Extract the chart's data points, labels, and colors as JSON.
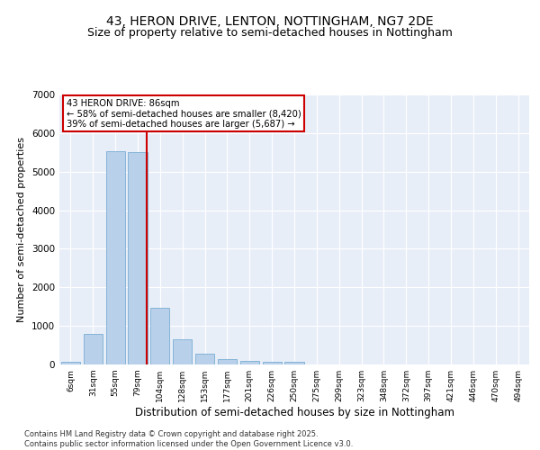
{
  "title1": "43, HERON DRIVE, LENTON, NOTTINGHAM, NG7 2DE",
  "title2": "Size of property relative to semi-detached houses in Nottingham",
  "xlabel": "Distribution of semi-detached houses by size in Nottingham",
  "ylabel": "Number of semi-detached properties",
  "categories": [
    "6sqm",
    "31sqm",
    "55sqm",
    "79sqm",
    "104sqm",
    "128sqm",
    "153sqm",
    "177sqm",
    "201sqm",
    "226sqm",
    "250sqm",
    "275sqm",
    "299sqm",
    "323sqm",
    "348sqm",
    "372sqm",
    "397sqm",
    "421sqm",
    "446sqm",
    "470sqm",
    "494sqm"
  ],
  "values": [
    60,
    800,
    5530,
    5500,
    1480,
    650,
    270,
    145,
    90,
    60,
    60,
    0,
    0,
    0,
    0,
    0,
    0,
    0,
    0,
    0,
    0
  ],
  "bar_color": "#b8d0ea",
  "bar_edge_color": "#7aadd4",
  "vline_x": 3.42,
  "vline_color": "#cc0000",
  "annotation_title": "43 HERON DRIVE: 86sqm",
  "annotation_line2": "← 58% of semi-detached houses are smaller (8,420)",
  "annotation_line3": "39% of semi-detached houses are larger (5,687) →",
  "annotation_box_color": "#ffffff",
  "annotation_box_edge": "#cc0000",
  "ylim": [
    0,
    7000
  ],
  "yticks": [
    0,
    1000,
    2000,
    3000,
    4000,
    5000,
    6000,
    7000
  ],
  "footer1": "Contains HM Land Registry data © Crown copyright and database right 2025.",
  "footer2": "Contains public sector information licensed under the Open Government Licence v3.0.",
  "bg_color": "#e8eef8",
  "title1_fontsize": 10,
  "title2_fontsize": 9,
  "xlabel_fontsize": 8.5,
  "ylabel_fontsize": 8
}
